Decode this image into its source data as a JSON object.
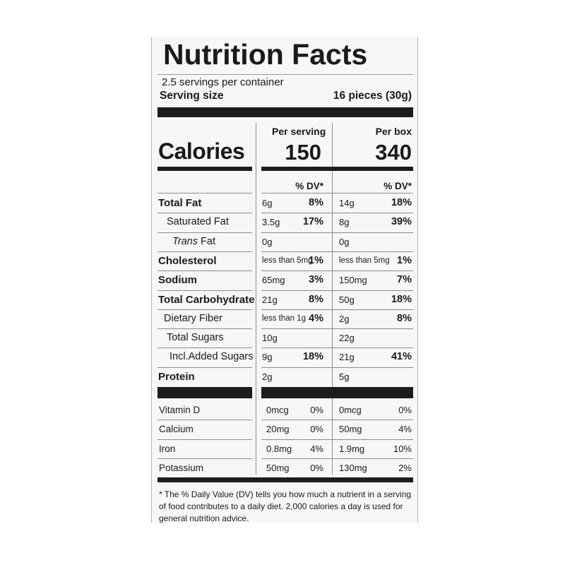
{
  "title": "Nutrition Facts",
  "servings_per_container": "2.5 servings per container",
  "serving_size": {
    "label": "Serving size",
    "value": "16 pieces (30g)"
  },
  "columns": {
    "per_serving": "Per serving",
    "per_box": "Per box"
  },
  "calories": {
    "label": "Calories",
    "per_serving": "150",
    "per_box": "340"
  },
  "dv_header": "% DV*",
  "nutrients": [
    {
      "name": "Total Fat",
      "serving_amount": "6g",
      "serving_dv": "8%",
      "box_amount": "14g",
      "box_dv": "18%"
    },
    {
      "name": "Saturated Fat",
      "serving_amount": "3.5g",
      "serving_dv": "17%",
      "box_amount": "8g",
      "box_dv": "39%"
    },
    {
      "name_italic": "Trans",
      "name_rest": " Fat",
      "serving_amount": "0g",
      "serving_dv": "",
      "box_amount": "0g",
      "box_dv": ""
    },
    {
      "name": "Cholesterol",
      "serving_amount": "less than 5mg",
      "serving_dv": "1%",
      "box_amount": "less than 5mg",
      "box_dv": "1%"
    },
    {
      "name": "Sodium",
      "serving_amount": "65mg",
      "serving_dv": "3%",
      "box_amount": "150mg",
      "box_dv": "7%"
    },
    {
      "name": "Total Carbohydrate",
      "serving_amount": "21g",
      "serving_dv": "8%",
      "box_amount": "50g",
      "box_dv": "18%"
    },
    {
      "name": "Dietary Fiber",
      "serving_amount": "less than 1g",
      "serving_dv": "4%",
      "box_amount": "2g",
      "box_dv": "8%"
    },
    {
      "name": "Total Sugars",
      "serving_amount": "10g",
      "serving_dv": "",
      "box_amount": "22g",
      "box_dv": ""
    },
    {
      "name": "Incl.Added Sugars",
      "serving_amount": "9g",
      "serving_dv": "18%",
      "box_amount": "21g",
      "box_dv": "41%"
    },
    {
      "name": "Protein",
      "serving_amount": "2g",
      "serving_dv": "",
      "box_amount": "5g",
      "box_dv": ""
    }
  ],
  "vitamins": [
    {
      "name": "Vitamin D",
      "serving_amount": "0mcg",
      "serving_dv": "0%",
      "box_amount": "0mcg",
      "box_dv": "0%"
    },
    {
      "name": "Calcium",
      "serving_amount": "20mg",
      "serving_dv": "0%",
      "box_amount": "50mg",
      "box_dv": "4%"
    },
    {
      "name": "Iron",
      "serving_amount": "0.8mg",
      "serving_dv": "4%",
      "box_amount": "1.9mg",
      "box_dv": "10%"
    },
    {
      "name": "Potassium",
      "serving_amount": "50mg",
      "serving_dv": "0%",
      "box_amount": "130mg",
      "box_dv": "2%"
    }
  ],
  "footnote": "* The % Daily Value (DV) tells you how much a nutrient in a serving of food contributes to a daily diet. 2,000 calories a day is used for general nutrition advice."
}
